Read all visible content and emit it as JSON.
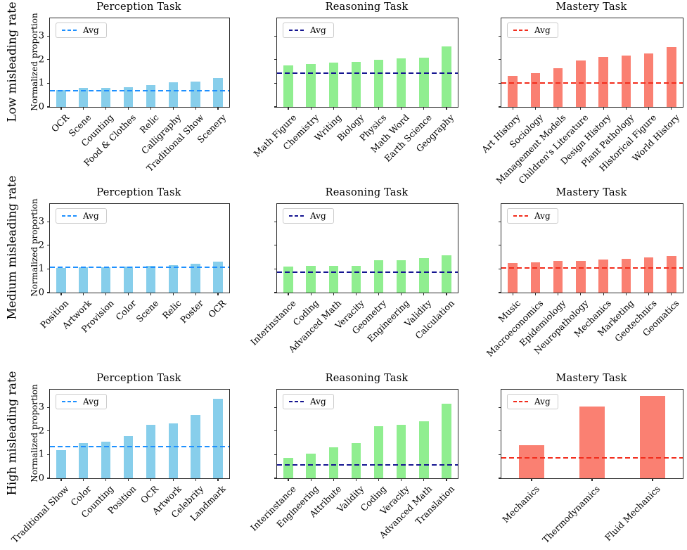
{
  "chart_data": [
    {
      "type": "bar",
      "row": "Low misleading rate",
      "title": "Perception Task",
      "ylabel": "Normalized proportion",
      "legend": "Avg",
      "categories": [
        "OCR",
        "Scene",
        "Counting",
        "Food & Clothes",
        "Relic",
        "Calligraphy",
        "Traditional Show",
        "Scenery"
      ],
      "values": [
        0.7,
        0.79,
        0.81,
        0.83,
        0.92,
        1.04,
        1.07,
        1.23
      ],
      "avg": 0.68,
      "bar_color": "#87CEEB",
      "avg_color": "#1E90FF",
      "ylim": [
        0,
        3.75
      ],
      "yticks": [
        0,
        1,
        2,
        3
      ],
      "ytick_labels_visible": true
    },
    {
      "type": "bar",
      "title": "Reasoning Task",
      "legend": "Avg",
      "categories": [
        "Math Figure",
        "Chemistry",
        "Writing",
        "Biology",
        "Physics",
        "Math Word",
        "Earth Science",
        "Geography"
      ],
      "values": [
        1.75,
        1.82,
        1.89,
        1.92,
        1.98,
        2.04,
        2.08,
        2.56
      ],
      "avg": 1.43,
      "bar_color": "#90EE90",
      "avg_color": "#151591",
      "ylim": [
        0,
        3.75
      ],
      "yticks": [
        0,
        1,
        2,
        3
      ],
      "ytick_labels_visible": false
    },
    {
      "type": "bar",
      "title": "Mastery Task",
      "legend": "Avg",
      "categories": [
        "Art History",
        "Sociology",
        "Management Models",
        "Children's Literature",
        "Design History",
        "Plant Pathology",
        "Historical Figure",
        "World History"
      ],
      "values": [
        1.3,
        1.44,
        1.64,
        1.96,
        2.1,
        2.16,
        2.27,
        2.52
      ],
      "avg": 1.0,
      "bar_color": "#FA8072",
      "avg_color": "#F22C1C",
      "ylim": [
        0,
        3.75
      ],
      "yticks": [
        0,
        1,
        2,
        3
      ],
      "ytick_labels_visible": false
    },
    {
      "type": "bar",
      "row": "Medium misleading rate",
      "title": "Perception Task",
      "ylabel": "Normalized proportion",
      "legend": "Avg",
      "categories": [
        "Position",
        "Artwork",
        "Provision",
        "Color",
        "Scene",
        "Relic",
        "Poster",
        "OCR"
      ],
      "values": [
        1.05,
        1.06,
        1.08,
        1.1,
        1.14,
        1.15,
        1.22,
        1.32
      ],
      "avg": 1.07,
      "bar_color": "#87CEEB",
      "avg_color": "#1E90FF",
      "ylim": [
        0,
        3.75
      ],
      "yticks": [
        0,
        1,
        2,
        3
      ],
      "ytick_labels_visible": true
    },
    {
      "type": "bar",
      "title": "Reasoning Task",
      "legend": "Avg",
      "categories": [
        "Interinstance",
        "Coding",
        "Advanced Math",
        "Veracity",
        "Geometry",
        "Engineering",
        "Validity",
        "Calculation"
      ],
      "values": [
        1.1,
        1.12,
        1.13,
        1.14,
        1.36,
        1.38,
        1.46,
        1.59
      ],
      "avg": 0.85,
      "bar_color": "#90EE90",
      "avg_color": "#151591",
      "ylim": [
        0,
        3.75
      ],
      "yticks": [
        0,
        1,
        2,
        3
      ],
      "ytick_labels_visible": false
    },
    {
      "type": "bar",
      "title": "Mastery Task",
      "legend": "Avg",
      "categories": [
        "Music",
        "Macroeconomics",
        "Epidemiology",
        "Neuropathology",
        "Mechanics",
        "Marketing",
        "Geotechnics",
        "Geomatics"
      ],
      "values": [
        1.25,
        1.27,
        1.33,
        1.34,
        1.4,
        1.43,
        1.48,
        1.55
      ],
      "avg": 1.03,
      "bar_color": "#FA8072",
      "avg_color": "#F22C1C",
      "ylim": [
        0,
        3.75
      ],
      "yticks": [
        0,
        1,
        2,
        3
      ],
      "ytick_labels_visible": false
    },
    {
      "type": "bar",
      "row": "High misleading rate",
      "title": "Perception Task",
      "ylabel": "Normalized proportion",
      "legend": "Avg",
      "categories": [
        "Traditional Show",
        "Color",
        "Counting",
        "Position",
        "OCR",
        "Artwork",
        "Celebrity",
        "Landmark"
      ],
      "values": [
        1.2,
        1.5,
        1.55,
        1.8,
        2.25,
        2.31,
        2.68,
        3.35
      ],
      "avg": 1.35,
      "bar_color": "#87CEEB",
      "avg_color": "#1E90FF",
      "ylim": [
        0,
        3.75
      ],
      "yticks": [
        0,
        1,
        2,
        3
      ],
      "ytick_labels_visible": true
    },
    {
      "type": "bar",
      "title": "Reasoning Task",
      "legend": "Avg",
      "categories": [
        "Interinstance",
        "Engineering",
        "Attribute",
        "Validity",
        "Coding",
        "Veracity",
        "Advanced Math",
        "Translation"
      ],
      "values": [
        0.85,
        1.05,
        1.3,
        1.5,
        2.21,
        2.27,
        2.42,
        3.16
      ],
      "avg": 0.57,
      "bar_color": "#90EE90",
      "avg_color": "#151591",
      "ylim": [
        0,
        3.75
      ],
      "yticks": [
        0,
        1,
        2,
        3
      ],
      "ytick_labels_visible": false
    },
    {
      "type": "bar",
      "title": "Mastery Task",
      "legend": "Avg",
      "categories": [
        "Mechanics",
        "Thermodynamics",
        "Fluid Mechanics"
      ],
      "values": [
        1.4,
        3.03,
        3.48
      ],
      "avg": 0.86,
      "bar_color": "#FA8072",
      "avg_color": "#F22C1C",
      "ylim": [
        0,
        3.75
      ],
      "yticks": [
        0,
        1,
        2,
        3
      ],
      "ytick_labels_visible": false
    }
  ]
}
